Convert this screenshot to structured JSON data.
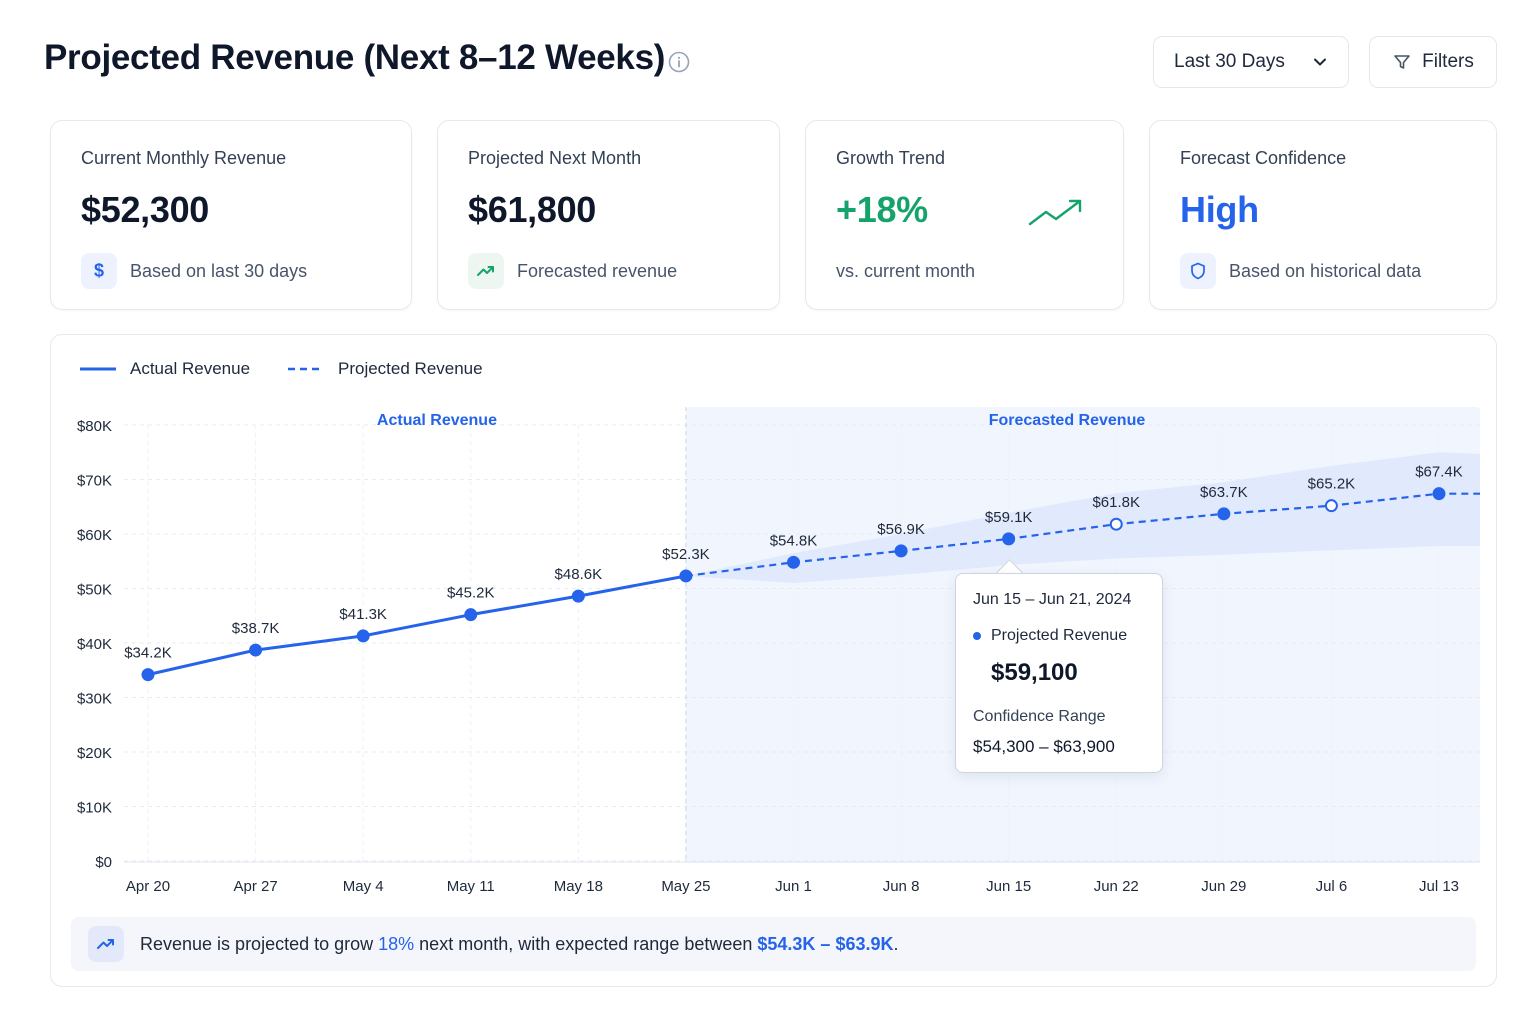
{
  "header": {
    "title": "Projected Revenue (Next 8–12 Weeks)",
    "info_icon": "info-icon",
    "date_range": "Last 30 Days",
    "filters_label": "Filters"
  },
  "cards": [
    {
      "label": "Current Monthly Revenue",
      "value": "$52,300",
      "sub": "Based on last 30 days",
      "icon": "dollar-icon"
    },
    {
      "label": "Projected Next Month",
      "value": "$61,800",
      "sub": "Forecasted revenue",
      "icon": "trending-up-icon"
    },
    {
      "label": "Growth Trend",
      "value": "+18%",
      "sub": "vs. current month",
      "icon": "trending-up-icon"
    },
    {
      "label": "Forecast Confidence",
      "value": "High",
      "sub": "Based on historical data",
      "icon": "shield-icon"
    }
  ],
  "colors": {
    "accent": "#2563eb",
    "positive": "#16a36b",
    "band": "#dbe5fb",
    "forecast_bg": "#f1f5fe"
  },
  "tooltip": {
    "date": "Jun 15 – Jun 21, 2024",
    "series": "Projected Revenue",
    "value": "$59,100",
    "range_label": "Confidence Range",
    "range": "$54,300 – $63,900"
  },
  "insight": {
    "prefix": "Revenue is projected to grow ",
    "growth": "18%",
    "middle": " next month, with expected range between ",
    "range": "$54.3K – $63.9K",
    "suffix": "."
  },
  "chart_data": {
    "type": "line",
    "legend": [
      "Actual Revenue",
      "Projected Revenue"
    ],
    "legend_position": "top-left",
    "region_labels": {
      "actual": "Actual Revenue",
      "forecast": "Forecasted Revenue"
    },
    "x": [
      "Apr 20",
      "Apr 27",
      "May 4",
      "May 11",
      "May 18",
      "May 25",
      "Jun 1",
      "Jun 8",
      "Jun 15",
      "Jun 22",
      "Jun 29",
      "Jul 6",
      "Jul 13"
    ],
    "y_ticks": [
      "$0",
      "$10K",
      "$20K",
      "$30K",
      "$40K",
      "$50K",
      "$60K",
      "$70K",
      "$80K"
    ],
    "ylim": [
      0,
      80000
    ],
    "grid": true,
    "series": [
      {
        "name": "Actual Revenue",
        "style": "solid",
        "x": [
          "Apr 20",
          "Apr 27",
          "May 4",
          "May 11",
          "May 18",
          "May 25"
        ],
        "values": [
          34200,
          38700,
          41300,
          45200,
          48600,
          52300
        ],
        "labels": [
          "$34.2K",
          "$38.7K",
          "$41.3K",
          "$45.2K",
          "$48.6K",
          "$52.3K"
        ]
      },
      {
        "name": "Projected Revenue",
        "style": "dashed",
        "x": [
          "May 25",
          "Jun 1",
          "Jun 8",
          "Jun 15",
          "Jun 22",
          "Jun 29",
          "Jul 6",
          "Jul 13"
        ],
        "values": [
          52300,
          54800,
          56900,
          59100,
          61800,
          63700,
          65200,
          67400
        ],
        "labels": [
          "",
          "$54.8K",
          "$56.9K",
          "$59.1K",
          "$61.8K",
          "$63.7K",
          "$65.2K",
          "$67.4K"
        ],
        "hollow": [
          false,
          false,
          false,
          false,
          true,
          false,
          true,
          false
        ]
      }
    ],
    "confidence_band": {
      "x": [
        "May 25",
        "Jun 1",
        "Jun 8",
        "Jun 15",
        "Jun 22",
        "Jun 29",
        "Jul 6",
        "Jul 13"
      ],
      "lower": [
        52300,
        51000,
        52500,
        54300,
        55500,
        56200,
        57000,
        57800
      ],
      "upper": [
        52300,
        56500,
        60000,
        63900,
        67500,
        69500,
        72500,
        75000
      ]
    },
    "highlight": "Jun 15"
  }
}
